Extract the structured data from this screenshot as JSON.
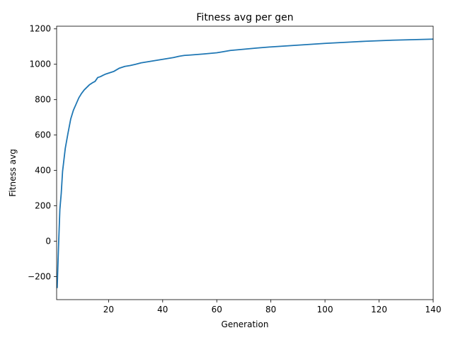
{
  "chart_data": {
    "type": "line",
    "title": "Fitness avg per gen",
    "xlabel": "Generation",
    "ylabel": "Fitness avg",
    "xlim": [
      0.8,
      140
    ],
    "ylim": [
      -330,
      1215
    ],
    "xticks": [
      20,
      40,
      60,
      80,
      100,
      120,
      140
    ],
    "yticks": [
      -200,
      0,
      200,
      400,
      600,
      800,
      1000,
      1200
    ],
    "grid": false,
    "line_color": "#1f77b4",
    "series": [
      {
        "x": [
          1,
          1.5,
          2,
          2.5,
          3,
          3.5,
          4,
          5,
          6,
          7,
          8,
          9,
          10,
          11,
          12,
          13,
          14,
          15,
          16,
          17,
          18,
          19,
          20,
          22,
          24,
          26,
          28,
          30,
          32,
          34,
          36,
          38,
          40,
          42,
          44,
          46,
          48,
          50,
          55,
          60,
          62,
          65,
          70,
          75,
          80,
          85,
          90,
          95,
          100,
          105,
          110,
          115,
          120,
          125,
          130,
          135,
          140
        ],
        "y": [
          -265,
          -30,
          180,
          270,
          395,
          460,
          525,
          610,
          690,
          740,
          775,
          810,
          835,
          855,
          870,
          885,
          895,
          903,
          925,
          930,
          938,
          945,
          950,
          960,
          978,
          988,
          993,
          1000,
          1008,
          1013,
          1018,
          1023,
          1028,
          1033,
          1038,
          1045,
          1050,
          1052,
          1058,
          1065,
          1070,
          1078,
          1085,
          1092,
          1098,
          1103,
          1108,
          1113,
          1118,
          1122,
          1126,
          1130,
          1133,
          1136,
          1138,
          1140,
          1142
        ]
      }
    ]
  }
}
